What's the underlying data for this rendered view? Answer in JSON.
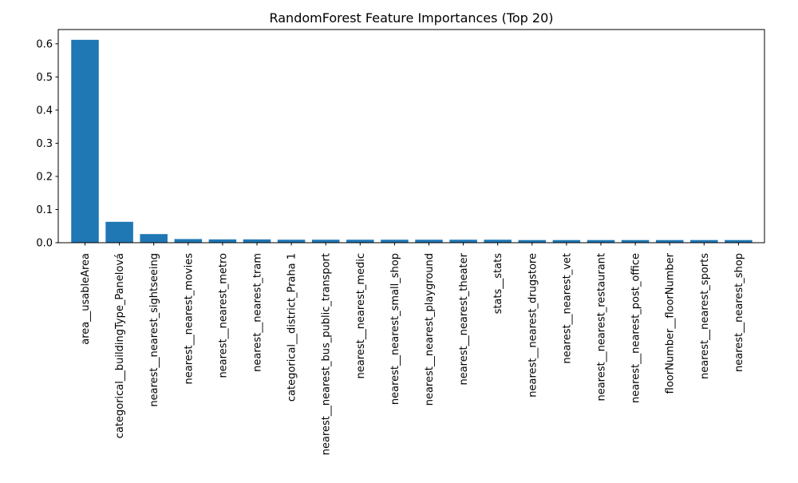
{
  "chart_data": {
    "type": "bar",
    "title": "RandomForest Feature Importances (Top 20)",
    "xlabel": "",
    "ylabel": "",
    "ylim": [
      0,
      0.643
    ],
    "yticks": [
      "0.0",
      "0.1",
      "0.2",
      "0.3",
      "0.4",
      "0.5",
      "0.6"
    ],
    "grid": false,
    "bar_color": "#1f77b4",
    "categories": [
      "area__usableArea",
      "categorical__buildingType_Panelová",
      "nearest__nearest_sightseeing",
      "nearest__nearest_movies",
      "nearest__nearest_metro",
      "nearest__nearest_tram",
      "categorical__district_Praha 1",
      "nearest__nearest_bus_public_transport",
      "nearest__nearest_medic",
      "nearest__nearest_small_shop",
      "nearest__nearest_playground",
      "nearest__nearest_theater",
      "stats__stats",
      "nearest__nearest_drugstore",
      "nearest__nearest_vet",
      "nearest__nearest_restaurant",
      "nearest__nearest_post_office",
      "floorNumber__floorNumber",
      "nearest__nearest_sports",
      "nearest__nearest_shop"
    ],
    "values": [
      0.612,
      0.063,
      0.026,
      0.011,
      0.01,
      0.01,
      0.009,
      0.009,
      0.009,
      0.009,
      0.009,
      0.009,
      0.009,
      0.008,
      0.008,
      0.008,
      0.008,
      0.008,
      0.008,
      0.008
    ]
  }
}
